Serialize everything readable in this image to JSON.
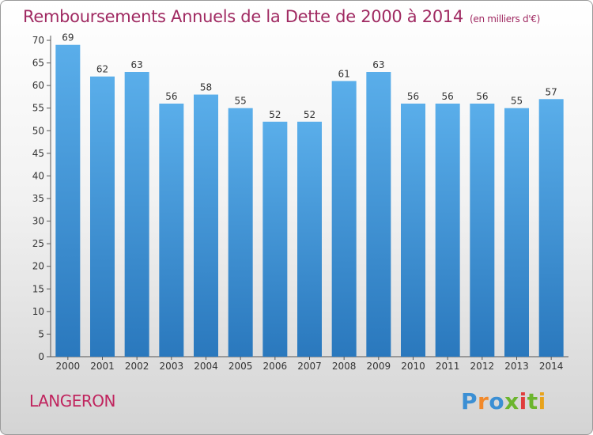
{
  "title": "Remboursements Annuels de la Dette de 2000 à 2014",
  "unit_note": "(en milliers d'€)",
  "commune": "LANGERON",
  "brand": {
    "letters": [
      "P",
      "r",
      "o",
      "x",
      "i",
      "t",
      "i"
    ],
    "colors": [
      "#3b8fd4",
      "#f2892a",
      "#3b8fd4",
      "#6cb52e",
      "#e03c3c",
      "#6cb52e",
      "#e8a31c"
    ]
  },
  "colors": {
    "bar": "#4d9fdf",
    "title": "#a02a62"
  },
  "chart_data": {
    "type": "bar",
    "title": "Remboursements Annuels de la Dette de 2000 à 2014",
    "categories": [
      "2000",
      "2001",
      "2002",
      "2003",
      "2004",
      "2005",
      "2006",
      "2007",
      "2008",
      "2009",
      "2010",
      "2011",
      "2012",
      "2013",
      "2014"
    ],
    "values": [
      69,
      62,
      63,
      56,
      58,
      55,
      52,
      52,
      61,
      63,
      56,
      56,
      56,
      55,
      57
    ],
    "ylim": [
      0,
      70
    ],
    "yticks": [
      0,
      5,
      10,
      15,
      20,
      25,
      30,
      35,
      40,
      45,
      50,
      55,
      60,
      65,
      70
    ],
    "grid": false,
    "data_labels": true
  }
}
